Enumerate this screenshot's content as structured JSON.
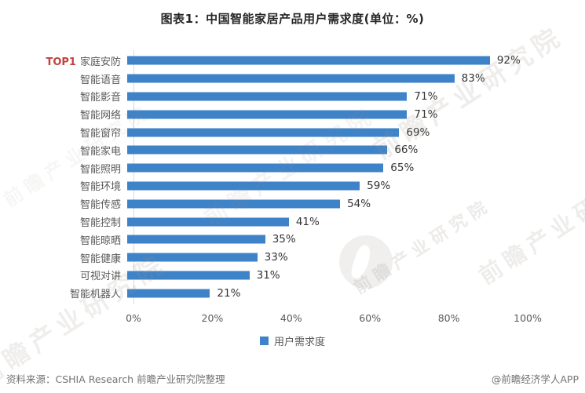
{
  "title": "图表1：中国智能家居产品用户需求度(单位：%)",
  "chart_data": {
    "type": "bar",
    "orientation": "horizontal",
    "title": "图表1：中国智能家居产品用户需求度(单位：%)",
    "categories": [
      "家庭安防",
      "智能语音",
      "智能影音",
      "智能网络",
      "智能窗帘",
      "智能家电",
      "智能照明",
      "智能环境",
      "智能传感",
      "智能控制",
      "智能晾晒",
      "智能健康",
      "可视对讲",
      "智能机器人"
    ],
    "values": [
      92,
      83,
      71,
      71,
      69,
      66,
      65,
      59,
      54,
      41,
      35,
      33,
      31,
      21
    ],
    "value_labels": [
      "92%",
      "83%",
      "71%",
      "71%",
      "69%",
      "66%",
      "65%",
      "59%",
      "54%",
      "41%",
      "35%",
      "33%",
      "31%",
      "21%"
    ],
    "top_rank_label": "TOP1",
    "x_ticks": [
      "0%",
      "20%",
      "40%",
      "60%",
      "80%",
      "100%"
    ],
    "xlim": [
      0,
      100
    ],
    "grid": false,
    "legend": [
      "用户需求度"
    ],
    "legend_position": "bottom"
  },
  "colors": {
    "bar": "#3E82C8",
    "top_rank": "#C2413C",
    "watermark": "#9b938a"
  },
  "watermark": {
    "text": "前瞻产业研究院"
  },
  "footer": {
    "source": "资料来源：CSHIA Research 前瞻产业研究院整理",
    "credit": "@前瞻经济学人APP"
  }
}
